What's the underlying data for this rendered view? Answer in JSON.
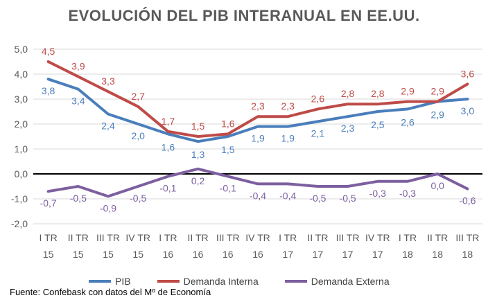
{
  "chart_data": {
    "type": "line",
    "title": "EVOLUCIÓN DEL PIB INTERANUAL EN EE.UU.",
    "categories": [
      [
        "I TR",
        "15"
      ],
      [
        "II TR",
        "15"
      ],
      [
        "III TR",
        "15"
      ],
      [
        "IV TR",
        "15"
      ],
      [
        "I TR",
        "16"
      ],
      [
        "II TR",
        "16"
      ],
      [
        "III TR",
        "16"
      ],
      [
        "IV TR",
        "16"
      ],
      [
        "I TR",
        "17"
      ],
      [
        "II TR",
        "17"
      ],
      [
        "III TR",
        "17"
      ],
      [
        "IV TR",
        "17"
      ],
      [
        "I TR",
        "18"
      ],
      [
        "II TR",
        "18"
      ],
      [
        "III TR",
        "18"
      ]
    ],
    "ylim": [
      -2.0,
      5.0
    ],
    "yticks": [
      "5,0",
      "4,0",
      "3,0",
      "2,0",
      "1,0",
      "0,0",
      "-1,0",
      "-2,0"
    ],
    "ytick_values": [
      5,
      4,
      3,
      2,
      1,
      0,
      -1,
      -2
    ],
    "grid": true,
    "series": [
      {
        "name": "PIB",
        "color": "#4a7ebb",
        "values": [
          3.8,
          3.4,
          2.4,
          2.0,
          1.6,
          1.3,
          1.5,
          1.9,
          1.9,
          2.1,
          2.3,
          2.5,
          2.6,
          2.9,
          3.0
        ],
        "labels": [
          "3,8",
          "3,4",
          "2,4",
          "2,0",
          "1,6",
          "1,3",
          "1,5",
          "1,9",
          "1,9",
          "2,1",
          "2,3",
          "2,5",
          "2,6",
          "2,9",
          "3,0"
        ]
      },
      {
        "name": "Demanda Interna",
        "color": "#be4b48",
        "values": [
          4.5,
          3.9,
          3.3,
          2.7,
          1.7,
          1.5,
          1.6,
          2.3,
          2.3,
          2.6,
          2.8,
          2.8,
          2.9,
          2.9,
          3.6
        ],
        "labels": [
          "4,5",
          "3,9",
          "3,3",
          "2,7",
          "1,7",
          "1,5",
          "1,6",
          "2,3",
          "2,3",
          "2,6",
          "2,8",
          "2,8",
          "2,9",
          "2,9",
          "3,6"
        ]
      },
      {
        "name": "Demanda Externa",
        "color": "#7d5fa0",
        "values": [
          -0.7,
          -0.5,
          -0.9,
          -0.5,
          -0.1,
          0.2,
          -0.1,
          -0.4,
          -0.4,
          -0.5,
          -0.5,
          -0.3,
          -0.3,
          0.0,
          -0.6
        ],
        "labels": [
          "-0,7",
          "-0,5",
          "-0,9",
          "-0,5",
          "-0,1",
          "0,2",
          "-0,1",
          "-0,4",
          "-0,4",
          "-0,5",
          "-0,5",
          "-0,3",
          "-0,3",
          "0,0",
          "-0,6"
        ]
      }
    ],
    "legend_position": "bottom"
  },
  "source": "Fuente: Confebask con datos del Mº de Economía"
}
